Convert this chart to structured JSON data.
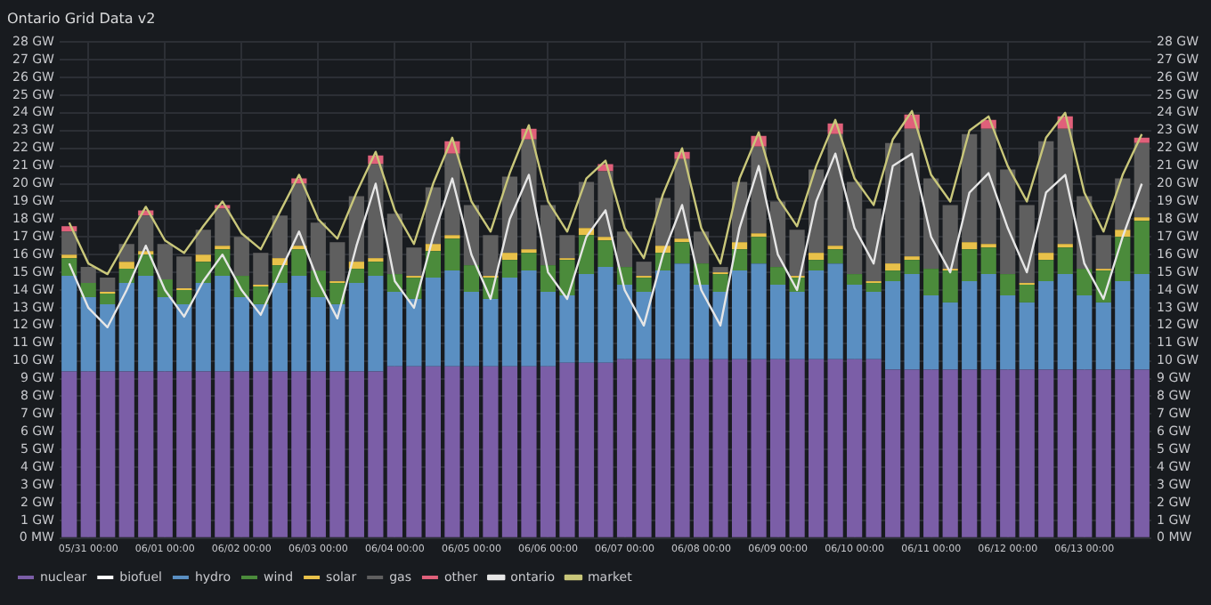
{
  "chart_data": {
    "type": "bar",
    "title": "Ontario Grid Data v2",
    "stacked": true,
    "grid": true,
    "legend": "bottom left",
    "marker": "none",
    "categories": [
      null,
      "05/31 00:00",
      null,
      null,
      null,
      "06/01 00:00",
      null,
      null,
      null,
      "06/02 00:00",
      null,
      null,
      null,
      "06/03 00:00",
      null,
      null,
      null,
      "06/04 00:00",
      null,
      null,
      null,
      "06/05 00:00",
      null,
      null,
      null,
      "06/06 00:00",
      null,
      null,
      null,
      "06/07 00:00",
      null,
      null,
      null,
      "06/08 00:00",
      null,
      null,
      null,
      "06/09 00:00",
      null,
      null,
      null,
      "06/10 00:00",
      null,
      null,
      null,
      "06/11 00:00",
      null,
      null,
      null,
      "06/12 00:00",
      null,
      null,
      null,
      "06/13 00:00",
      null,
      null,
      null
    ],
    "ylim": [
      0,
      28
    ],
    "yticks": [
      {
        "value": 0,
        "label": "0 MW"
      },
      {
        "value": 1,
        "label": "1 GW"
      },
      {
        "value": 2,
        "label": "2 GW"
      },
      {
        "value": 3,
        "label": "3 GW"
      },
      {
        "value": 4,
        "label": "4 GW"
      },
      {
        "value": 5,
        "label": "5 GW"
      },
      {
        "value": 6,
        "label": "6 GW"
      },
      {
        "value": 7,
        "label": "7 GW"
      },
      {
        "value": 8,
        "label": "8 GW"
      },
      {
        "value": 9,
        "label": "9 GW"
      },
      {
        "value": 10,
        "label": "10 GW"
      },
      {
        "value": 11,
        "label": "11 GW"
      },
      {
        "value": 12,
        "label": "12 GW"
      },
      {
        "value": 13,
        "label": "13 GW"
      },
      {
        "value": 14,
        "label": "14 GW"
      },
      {
        "value": 15,
        "label": "15 GW"
      },
      {
        "value": 16,
        "label": "16 GW"
      },
      {
        "value": 17,
        "label": "17 GW"
      },
      {
        "value": 18,
        "label": "18 GW"
      },
      {
        "value": 19,
        "label": "19 GW"
      },
      {
        "value": 20,
        "label": "20 GW"
      },
      {
        "value": 21,
        "label": "21 GW"
      },
      {
        "value": 22,
        "label": "22 GW"
      },
      {
        "value": 23,
        "label": "23 GW"
      },
      {
        "value": 24,
        "label": "24 GW"
      },
      {
        "value": 25,
        "label": "25 GW"
      },
      {
        "value": 26,
        "label": "26 GW"
      },
      {
        "value": 27,
        "label": "27 GW"
      },
      {
        "value": 28,
        "label": "28 GW"
      }
    ],
    "y2lim": [
      0,
      28
    ],
    "y2ticks": [
      {
        "value": 0,
        "label": "0 MW"
      },
      {
        "value": 1,
        "label": "1 GW"
      },
      {
        "value": 2,
        "label": "2 GW"
      },
      {
        "value": 3,
        "label": "3 GW"
      },
      {
        "value": 4,
        "label": "4 GW"
      },
      {
        "value": 5,
        "label": "5 GW"
      },
      {
        "value": 6,
        "label": "6 GW"
      },
      {
        "value": 7,
        "label": "7 GW"
      },
      {
        "value": 8,
        "label": "8 GW"
      },
      {
        "value": 9,
        "label": "9 GW"
      },
      {
        "value": 10,
        "label": "10 GW"
      },
      {
        "value": 11,
        "label": "11 GW"
      },
      {
        "value": 12,
        "label": "12 GW"
      },
      {
        "value": 13,
        "label": "13 GW"
      },
      {
        "value": 14,
        "label": "14 GW"
      },
      {
        "value": 15,
        "label": "15 GW"
      },
      {
        "value": 16,
        "label": "16 GW"
      },
      {
        "value": 17,
        "label": "17 GW"
      },
      {
        "value": 18,
        "label": "18 GW"
      },
      {
        "value": 19,
        "label": "19 GW"
      },
      {
        "value": 20,
        "label": "20 GW"
      },
      {
        "value": 21,
        "label": "21 GW"
      },
      {
        "value": 22,
        "label": "22 GW"
      },
      {
        "value": 23,
        "label": "23 GW"
      },
      {
        "value": 24,
        "label": "24 GW"
      },
      {
        "value": 25,
        "label": "25 GW"
      },
      {
        "value": 26,
        "label": "26 GW"
      },
      {
        "value": 27,
        "label": "27 GW"
      },
      {
        "value": 28,
        "label": "28 GW"
      }
    ],
    "series": [
      {
        "name": "nuclear",
        "color": "#7b5ea7",
        "values": [
          9.4,
          9.4,
          9.4,
          9.4,
          9.4,
          9.4,
          9.4,
          9.4,
          9.4,
          9.4,
          9.4,
          9.4,
          9.4,
          9.4,
          9.4,
          9.4,
          9.4,
          9.7,
          9.7,
          9.7,
          9.7,
          9.7,
          9.7,
          9.7,
          9.7,
          9.7,
          9.9,
          9.9,
          9.9,
          10.1,
          10.1,
          10.1,
          10.1,
          10.1,
          10.1,
          10.1,
          10.1,
          10.1,
          10.1,
          10.1,
          10.1,
          10.1,
          10.1,
          9.5,
          9.5,
          9.5,
          9.5,
          9.5,
          9.5,
          9.5,
          9.5,
          9.5,
          9.5,
          9.5,
          9.5,
          9.5,
          9.5
        ]
      },
      {
        "name": "biofuel",
        "color": "#ffffff",
        "values": [
          0,
          0,
          0,
          0,
          0,
          0,
          0,
          0,
          0,
          0,
          0,
          0,
          0,
          0,
          0,
          0,
          0,
          0,
          0,
          0,
          0,
          0,
          0,
          0,
          0,
          0,
          0,
          0,
          0,
          0,
          0,
          0,
          0,
          0,
          0,
          0,
          0,
          0,
          0,
          0,
          0,
          0,
          0,
          0,
          0,
          0,
          0,
          0,
          0,
          0,
          0,
          0,
          0,
          0,
          0,
          0,
          0
        ]
      },
      {
        "name": "hydro",
        "color": "#5a8fc2",
        "values": [
          5.4,
          4.2,
          3.8,
          5.0,
          5.4,
          4.2,
          3.8,
          5.0,
          5.4,
          4.2,
          3.8,
          5.0,
          5.4,
          4.2,
          3.8,
          5.0,
          5.4,
          4.2,
          3.8,
          5.0,
          5.4,
          4.2,
          3.8,
          5.0,
          5.4,
          4.2,
          3.8,
          5.0,
          5.4,
          4.2,
          3.8,
          5.0,
          5.4,
          4.2,
          3.8,
          5.0,
          5.4,
          4.2,
          3.8,
          5.0,
          5.4,
          4.2,
          3.8,
          5.0,
          5.4,
          4.2,
          3.8,
          5.0,
          5.4,
          4.2,
          3.8,
          5.0,
          5.4,
          4.2,
          3.8,
          5.0,
          5.4
        ]
      },
      {
        "name": "wind",
        "color": "#4b8b3b",
        "values": [
          1.0,
          0.8,
          0.6,
          0.8,
          1.2,
          1.0,
          0.8,
          1.2,
          1.5,
          1.2,
          1.0,
          1.0,
          1.5,
          1.5,
          1.2,
          0.8,
          0.8,
          1.0,
          1.2,
          1.5,
          1.8,
          1.5,
          1.2,
          1.0,
          1.0,
          1.5,
          2.0,
          2.2,
          1.5,
          1.0,
          0.8,
          1.0,
          1.2,
          1.2,
          1.0,
          1.2,
          1.5,
          1.0,
          0.8,
          0.6,
          0.8,
          0.6,
          0.5,
          0.6,
          0.8,
          1.5,
          1.8,
          1.8,
          1.5,
          1.2,
          1.0,
          1.2,
          1.5,
          1.5,
          1.8,
          2.5,
          3.0
        ]
      },
      {
        "name": "solar",
        "color": "#e8c14a",
        "values": [
          0.2,
          0,
          0.1,
          0.4,
          0.2,
          0,
          0.1,
          0.4,
          0.2,
          0,
          0.1,
          0.4,
          0.2,
          0,
          0.1,
          0.4,
          0.2,
          0,
          0.1,
          0.4,
          0.2,
          0,
          0.1,
          0.4,
          0.2,
          0,
          0.1,
          0.4,
          0.2,
          0,
          0.1,
          0.4,
          0.2,
          0,
          0.1,
          0.4,
          0.2,
          0,
          0.1,
          0.4,
          0.2,
          0,
          0.1,
          0.4,
          0.2,
          0,
          0.1,
          0.4,
          0.2,
          0,
          0.1,
          0.4,
          0.2,
          0,
          0.1,
          0.4,
          0.2
        ]
      },
      {
        "name": "gas",
        "color": "#5f5f5f",
        "values": [
          1.3,
          0.9,
          0.8,
          1.0,
          2.0,
          2.0,
          1.8,
          1.4,
          2.1,
          2.2,
          1.8,
          2.4,
          3.5,
          2.7,
          2.2,
          3.7,
          5.3,
          3.4,
          1.6,
          3.2,
          4.6,
          3.4,
          2.3,
          4.3,
          6.2,
          3.4,
          1.3,
          2.6,
          3.7,
          2.0,
          0.8,
          2.7,
          4.5,
          1.8,
          0.3,
          3.4,
          4.9,
          3.7,
          2.6,
          4.7,
          6.3,
          5.2,
          4.1,
          6.8,
          7.2,
          5.1,
          3.6,
          6.1,
          6.5,
          5.9,
          4.4,
          6.3,
          6.5,
          4.1,
          1.9,
          2.9,
          4.2
        ]
      },
      {
        "name": "other",
        "color": "#e0607a",
        "values": [
          0.3,
          0,
          0,
          0,
          0.3,
          0,
          0,
          0,
          0.2,
          0,
          0,
          0,
          0.3,
          0,
          0,
          0,
          0.5,
          0,
          0,
          0,
          0.7,
          0,
          0,
          0,
          0.6,
          0,
          0,
          0,
          0.4,
          0,
          0,
          0,
          0.4,
          0,
          0,
          0,
          0.6,
          0,
          0,
          0,
          0.6,
          0,
          0,
          0,
          0.8,
          0,
          0,
          0,
          0.5,
          0,
          0,
          0,
          0.7,
          0,
          0,
          0,
          0.3
        ]
      },
      {
        "name": "ontario",
        "type": "line",
        "color": "#e6e6e6",
        "values": [
          15.5,
          13.0,
          11.9,
          14.0,
          16.5,
          14.0,
          12.5,
          14.5,
          16.0,
          14.0,
          12.6,
          15.0,
          17.3,
          14.5,
          12.4,
          16.5,
          20.0,
          14.5,
          13.0,
          17.0,
          20.3,
          16.0,
          13.5,
          18.0,
          20.5,
          15.0,
          13.5,
          17.0,
          18.5,
          14.0,
          12.0,
          16.0,
          18.8,
          14.0,
          12.0,
          17.5,
          21.0,
          16.0,
          14.0,
          19.0,
          21.7,
          17.5,
          15.5,
          21.0,
          21.7,
          17.0,
          15.0,
          19.5,
          20.6,
          17.5,
          15.0,
          19.5,
          20.5,
          15.5,
          13.5,
          17.0,
          20.0
        ]
      },
      {
        "name": "market",
        "type": "line",
        "color": "#c9c77a",
        "values": [
          17.8,
          15.5,
          14.9,
          16.8,
          18.7,
          16.8,
          16.1,
          17.6,
          19.0,
          17.2,
          16.3,
          18.4,
          20.5,
          18.0,
          16.9,
          19.5,
          21.8,
          18.5,
          16.6,
          20.0,
          22.6,
          19.0,
          17.3,
          20.6,
          23.3,
          19.0,
          17.3,
          20.3,
          21.3,
          17.5,
          15.8,
          19.4,
          22.0,
          17.5,
          15.5,
          20.3,
          22.9,
          19.2,
          17.6,
          21.0,
          23.6,
          20.3,
          18.8,
          22.5,
          24.1,
          20.5,
          19.0,
          23.0,
          23.8,
          21.0,
          19.0,
          22.6,
          24.0,
          19.5,
          17.3,
          20.5,
          22.8
        ]
      }
    ]
  }
}
